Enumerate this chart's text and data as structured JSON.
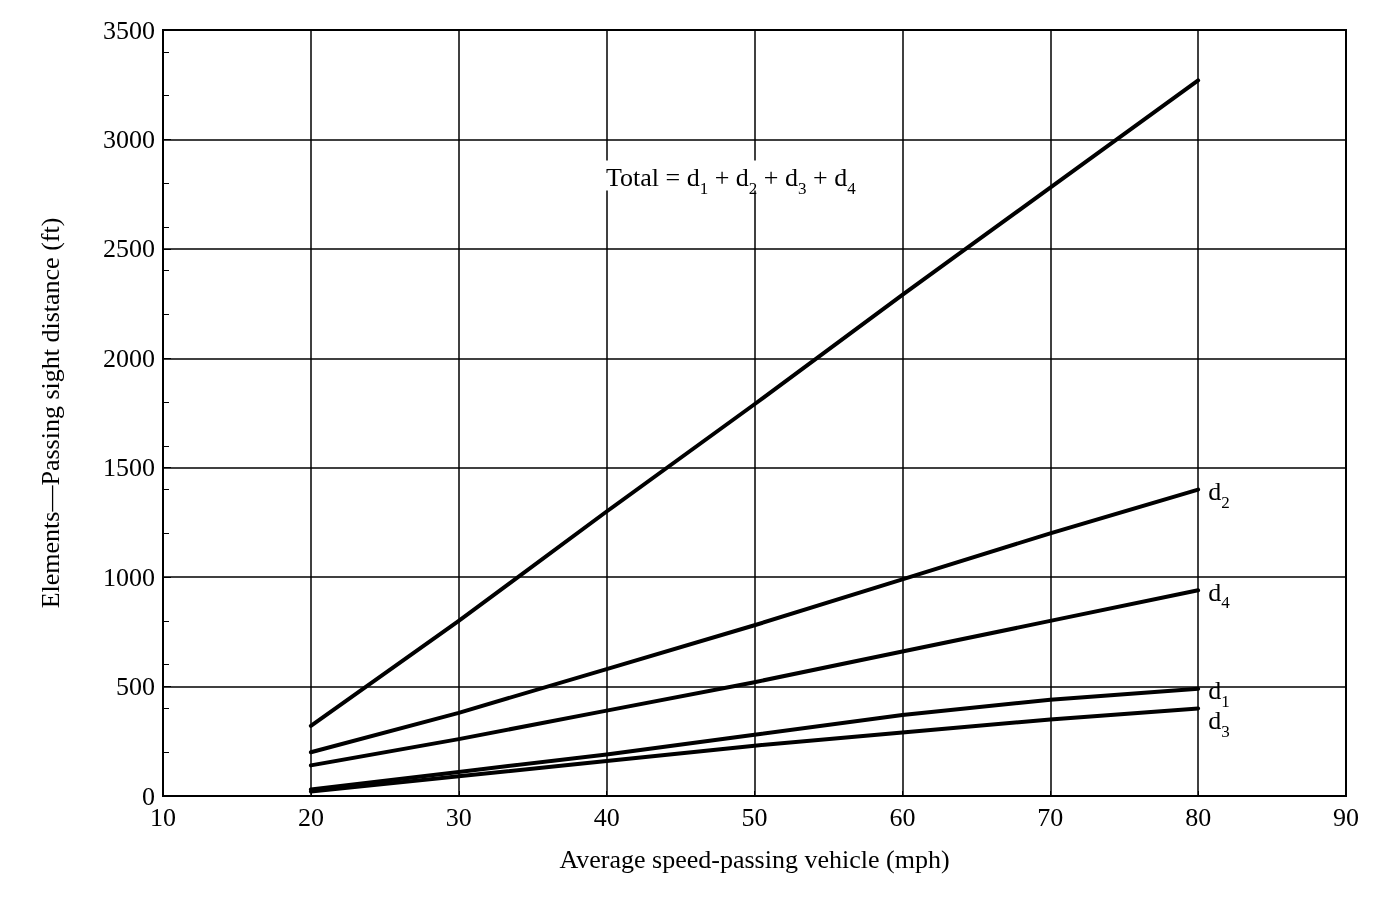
{
  "chart_data": {
    "type": "line",
    "xlabel": "Average speed-passing vehicle (mph)",
    "ylabel": "Elements—Passing sight distance (ft)",
    "x": [
      20,
      30,
      40,
      50,
      60,
      70,
      80
    ],
    "series": [
      {
        "color": "#000000",
        "values": [
          320,
          800,
          1300,
          1790,
          2290,
          2780,
          3270
        ]
      },
      {
        "name": "d$_{2}$",
        "color": "#000000",
        "values": [
          200,
          380,
          580,
          780,
          990,
          1200,
          1400
        ]
      },
      {
        "name": "d$_{4}$",
        "color": "#000000",
        "values": [
          140,
          260,
          390,
          520,
          660,
          800,
          940
        ]
      },
      {
        "name": "d$_{1}$",
        "color": "#000000",
        "values": [
          30,
          110,
          190,
          280,
          370,
          440,
          490
        ]
      },
      {
        "name": "d$_{3}$",
        "color": "#000000",
        "values": [
          20,
          90,
          160,
          230,
          290,
          350,
          400
        ]
      }
    ],
    "annotations": [
      "Total = d$_{1}$ + d$_{2}$ + d$_{3}$ + d$_{4}$"
    ],
    "xlim": [
      10,
      90
    ],
    "xticks": [
      10,
      20,
      30,
      40,
      50,
      60,
      70,
      80,
      90
    ],
    "ylim": [
      0,
      3500
    ],
    "yticks": [
      0,
      500,
      1000,
      1500,
      2000,
      2500,
      3000,
      3500
    ],
    "grid": true,
    "legend": false,
    "marker": "none",
    "line_style": "solid"
  }
}
